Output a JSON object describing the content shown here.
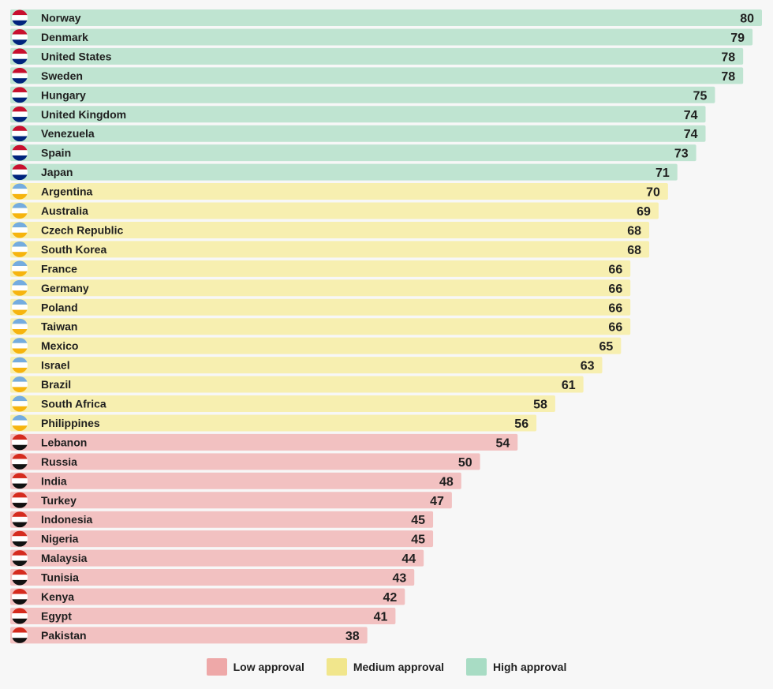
{
  "chart_data": {
    "type": "bar",
    "orientation": "horizontal",
    "xlim": [
      0,
      80
    ],
    "grid": false,
    "legend_position": "bottom",
    "colors": {
      "low": "#f2c1c1",
      "medium": "#f7efb0",
      "high": "#bfe4d1",
      "low_legend": "#eea8a8",
      "medium_legend": "#f1e68c",
      "high_legend": "#a8dcc4"
    },
    "legend": [
      {
        "key": "low",
        "label": "Low approval"
      },
      {
        "key": "medium",
        "label": "Medium approval"
      },
      {
        "key": "high",
        "label": "High approval"
      }
    ],
    "rows": [
      {
        "country": "Norway",
        "value": 80,
        "level": "high",
        "flag": "norway-flag-icon"
      },
      {
        "country": "Denmark",
        "value": 79,
        "level": "high",
        "flag": "denmark-flag-icon"
      },
      {
        "country": "United States",
        "value": 78,
        "level": "high",
        "flag": "united-states-flag-icon"
      },
      {
        "country": "Sweden",
        "value": 78,
        "level": "high",
        "flag": "sweden-flag-icon"
      },
      {
        "country": "Hungary",
        "value": 75,
        "level": "high",
        "flag": "hungary-flag-icon"
      },
      {
        "country": "United Kingdom",
        "value": 74,
        "level": "high",
        "flag": "united-kingdom-flag-icon"
      },
      {
        "country": "Venezuela",
        "value": 74,
        "level": "high",
        "flag": "venezuela-flag-icon"
      },
      {
        "country": "Spain",
        "value": 73,
        "level": "high",
        "flag": "spain-flag-icon"
      },
      {
        "country": "Japan",
        "value": 71,
        "level": "high",
        "flag": "japan-flag-icon"
      },
      {
        "country": "Argentina",
        "value": 70,
        "level": "medium",
        "flag": "argentina-flag-icon"
      },
      {
        "country": "Australia",
        "value": 69,
        "level": "medium",
        "flag": "australia-flag-icon"
      },
      {
        "country": "Czech Republic",
        "value": 68,
        "level": "medium",
        "flag": "czech-republic-flag-icon"
      },
      {
        "country": "South Korea",
        "value": 68,
        "level": "medium",
        "flag": "south-korea-flag-icon"
      },
      {
        "country": "France",
        "value": 66,
        "level": "medium",
        "flag": "france-flag-icon"
      },
      {
        "country": "Germany",
        "value": 66,
        "level": "medium",
        "flag": "germany-flag-icon"
      },
      {
        "country": "Poland",
        "value": 66,
        "level": "medium",
        "flag": "poland-flag-icon"
      },
      {
        "country": "Taiwan",
        "value": 66,
        "level": "medium",
        "flag": "taiwan-flag-icon"
      },
      {
        "country": "Mexico",
        "value": 65,
        "level": "medium",
        "flag": "mexico-flag-icon"
      },
      {
        "country": "Israel",
        "value": 63,
        "level": "medium",
        "flag": "israel-flag-icon"
      },
      {
        "country": "Brazil",
        "value": 61,
        "level": "medium",
        "flag": "brazil-flag-icon"
      },
      {
        "country": "South Africa",
        "value": 58,
        "level": "medium",
        "flag": "south-africa-flag-icon"
      },
      {
        "country": "Philippines",
        "value": 56,
        "level": "medium",
        "flag": "philippines-flag-icon"
      },
      {
        "country": "Lebanon",
        "value": 54,
        "level": "low",
        "flag": "lebanon-flag-icon"
      },
      {
        "country": "Russia",
        "value": 50,
        "level": "low",
        "flag": "russia-flag-icon"
      },
      {
        "country": "India",
        "value": 48,
        "level": "low",
        "flag": "india-flag-icon"
      },
      {
        "country": "Turkey",
        "value": 47,
        "level": "low",
        "flag": "turkey-flag-icon"
      },
      {
        "country": "Indonesia",
        "value": 45,
        "level": "low",
        "flag": "indonesia-flag-icon"
      },
      {
        "country": "Nigeria",
        "value": 45,
        "level": "low",
        "flag": "nigeria-flag-icon"
      },
      {
        "country": "Malaysia",
        "value": 44,
        "level": "low",
        "flag": "malaysia-flag-icon"
      },
      {
        "country": "Tunisia",
        "value": 43,
        "level": "low",
        "flag": "tunisia-flag-icon"
      },
      {
        "country": "Kenya",
        "value": 42,
        "level": "low",
        "flag": "kenya-flag-icon"
      },
      {
        "country": "Egypt",
        "value": 41,
        "level": "low",
        "flag": "egypt-flag-icon"
      },
      {
        "country": "Pakistan",
        "value": 38,
        "level": "low",
        "flag": "pakistan-flag-icon"
      }
    ]
  }
}
